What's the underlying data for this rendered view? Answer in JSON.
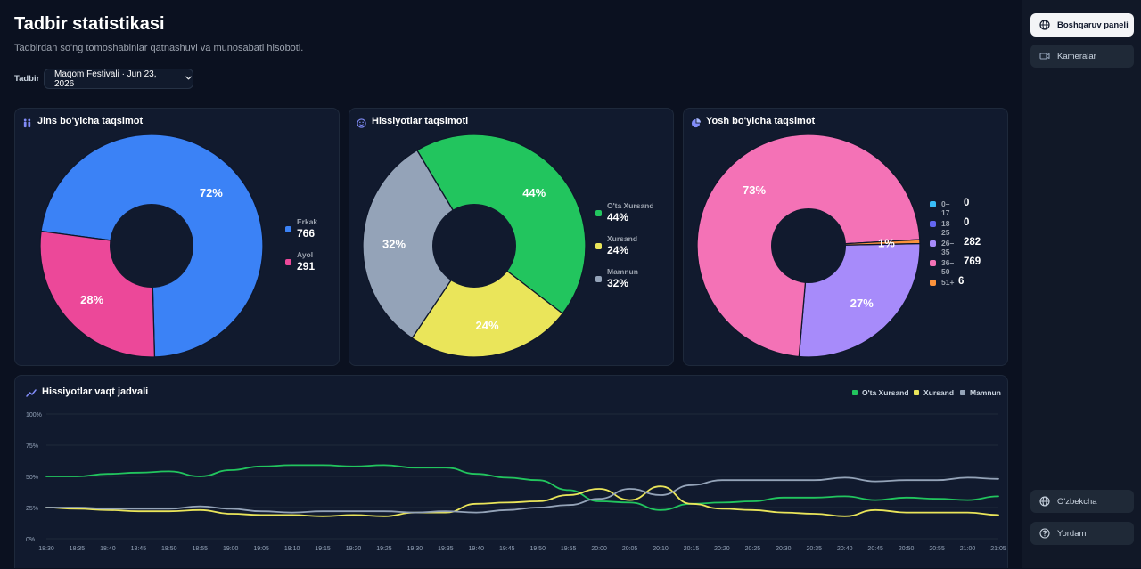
{
  "page": {
    "title": "Tadbir statistikasi",
    "subtitle": "Tadbirdan so'ng tomoshabinlar qatnashuvi va munosabati hisoboti.",
    "filter_label": "Tadbir",
    "event_select": "Maqom Festivali · Jun 23, 2026"
  },
  "sidebar": {
    "items": [
      {
        "label": "Boshqaruv paneli",
        "icon": "globe-icon",
        "active": true
      },
      {
        "label": "Kameralar",
        "icon": "video-camera-icon",
        "active": false
      }
    ],
    "bottom": [
      {
        "label": "O'zbekcha",
        "icon": "globe-icon"
      },
      {
        "label": "Yordam",
        "icon": "help-circle-icon"
      }
    ]
  },
  "cards": {
    "gender": {
      "title": "Jins bo'yicha taqsimot",
      "icon": "people-icon"
    },
    "emotion": {
      "title": "Hissiyotlar taqsimoti",
      "icon": "smile-icon"
    },
    "age": {
      "title": "Yosh bo'yicha taqsimot",
      "icon": "pie-chart-icon"
    },
    "timeline": {
      "title": "Hissiyotlar vaqt jadvali",
      "icon": "trend-line-icon"
    }
  },
  "chart_data": [
    {
      "type": "pie",
      "title": "Jins bo'yicha taqsimot",
      "categories": [
        "Erkak",
        "Ayol"
      ],
      "values": [
        766,
        291
      ],
      "percent_labels": [
        "72%",
        "28%"
      ],
      "colors": [
        "#3b82f6",
        "#ec4899"
      ]
    },
    {
      "type": "pie",
      "title": "Hissiyotlar taqsimoti",
      "categories": [
        "O'ta Xursand",
        "Xursand",
        "Mamnun"
      ],
      "values": [
        44,
        24,
        32
      ],
      "value_labels": [
        "44%",
        "24%",
        "32%"
      ],
      "percent_labels": [
        "44%",
        "24%",
        "32%"
      ],
      "colors": [
        "#22c55e",
        "#eae55a",
        "#94a3b8"
      ]
    },
    {
      "type": "pie",
      "title": "Yosh bo'yicha taqsimot",
      "categories": [
        "0–17",
        "18–25",
        "26–35",
        "36–50",
        "51+"
      ],
      "values": [
        0,
        0,
        282,
        769,
        6
      ],
      "percent_labels": [
        "",
        "",
        "27%",
        "73%",
        "1%"
      ],
      "colors": [
        "#38bdf8",
        "#6366f1",
        "#a78bfa",
        "#f472b6",
        "#fb923c"
      ]
    },
    {
      "type": "line",
      "title": "Hissiyotlar vaqt jadvali",
      "x": [
        "18:30",
        "18:35",
        "18:40",
        "18:45",
        "18:50",
        "18:55",
        "19:00",
        "19:05",
        "19:10",
        "19:15",
        "19:20",
        "19:25",
        "19:30",
        "19:35",
        "19:40",
        "19:45",
        "19:50",
        "19:55",
        "20:00",
        "20:05",
        "20:10",
        "20:15",
        "20:20",
        "20:25",
        "20:30",
        "20:35",
        "20:40",
        "20:45",
        "20:50",
        "20:55",
        "21:00",
        "21:05"
      ],
      "y_ticks": [
        "0%",
        "25%",
        "50%",
        "75%",
        "100%"
      ],
      "ylim": [
        0,
        100
      ],
      "grid": true,
      "legend": "top-right",
      "series": [
        {
          "name": "O'ta Xursand",
          "color": "#22c55e",
          "values": [
            50,
            50,
            52,
            53,
            54,
            50,
            55,
            58,
            59,
            59,
            58,
            59,
            57,
            57,
            52,
            49,
            47,
            39,
            30,
            29,
            23,
            28,
            29,
            30,
            33,
            33,
            34,
            31,
            33,
            32,
            31,
            34
          ]
        },
        {
          "name": "Xursand",
          "color": "#eae55a",
          "values": [
            25,
            24,
            23,
            22,
            22,
            23,
            20,
            19,
            19,
            18,
            19,
            18,
            21,
            21,
            28,
            29,
            30,
            35,
            40,
            31,
            42,
            28,
            24,
            23,
            21,
            20,
            18,
            23,
            21,
            21,
            21,
            19
          ]
        },
        {
          "name": "Mamnun",
          "color": "#94a3b8",
          "values": [
            25,
            25,
            24,
            24,
            24,
            26,
            24,
            22,
            21,
            22,
            22,
            22,
            21,
            22,
            21,
            23,
            25,
            27,
            32,
            40,
            35,
            43,
            47,
            47,
            47,
            47,
            49,
            46,
            47,
            47,
            49,
            48
          ]
        }
      ]
    }
  ]
}
